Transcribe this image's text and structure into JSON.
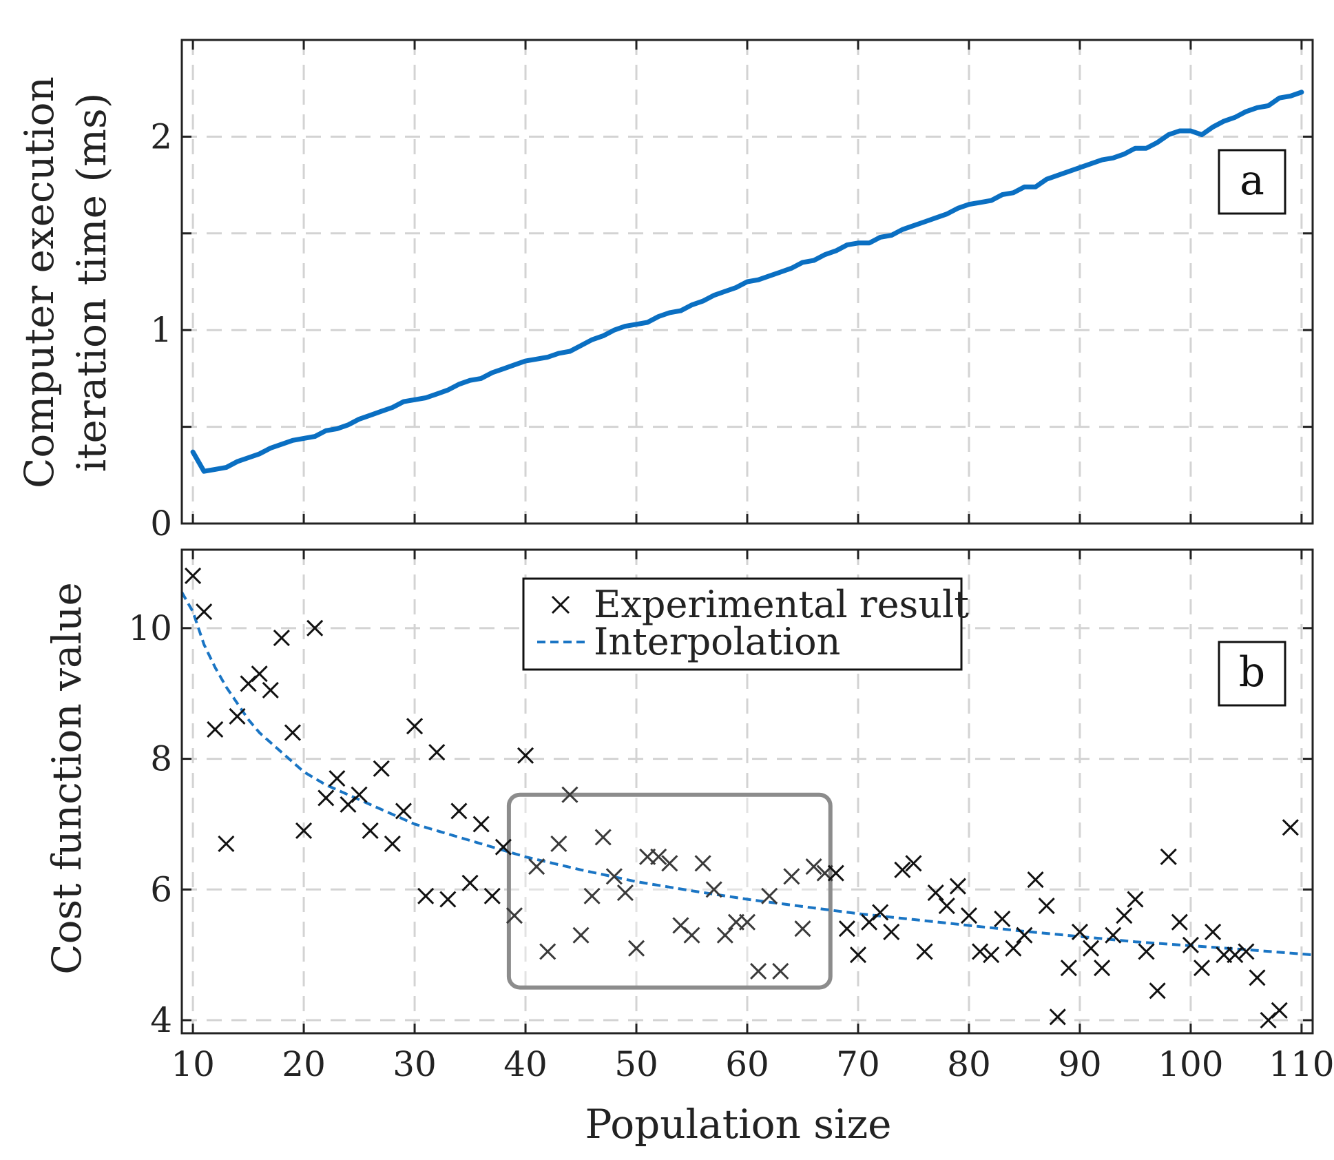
{
  "colors": {
    "line": "#0a6fc2",
    "interp": "#1a75c4",
    "marker": "#111111",
    "grid": "#d3d3d3",
    "highlight": "#8c8c8c"
  },
  "chart_data": [
    {
      "type": "line",
      "panel_label": "a",
      "xlabel": "",
      "ylabel_lines": [
        "Computer execution",
        "iteration time (ms)"
      ],
      "xlim": [
        9,
        111
      ],
      "ylim": [
        0,
        2.5
      ],
      "yticks": [
        0,
        1,
        2
      ],
      "grid": true,
      "series": [
        {
          "name": "",
          "x": [
            10,
            11,
            12,
            13,
            14,
            15,
            16,
            17,
            18,
            19,
            20,
            21,
            22,
            23,
            24,
            25,
            26,
            27,
            28,
            29,
            30,
            31,
            32,
            33,
            34,
            35,
            36,
            37,
            38,
            39,
            40,
            41,
            42,
            43,
            44,
            45,
            46,
            47,
            48,
            49,
            50,
            51,
            52,
            53,
            54,
            55,
            56,
            57,
            58,
            59,
            60,
            61,
            62,
            63,
            64,
            65,
            66,
            67,
            68,
            69,
            70,
            71,
            72,
            73,
            74,
            75,
            76,
            77,
            78,
            79,
            80,
            81,
            82,
            83,
            84,
            85,
            86,
            87,
            88,
            89,
            90,
            91,
            92,
            93,
            94,
            95,
            96,
            97,
            98,
            99,
            100,
            101,
            102,
            103,
            104,
            105,
            106,
            107,
            108,
            109,
            110
          ],
          "y": [
            0.37,
            0.27,
            0.28,
            0.29,
            0.32,
            0.34,
            0.36,
            0.39,
            0.41,
            0.43,
            0.44,
            0.45,
            0.48,
            0.49,
            0.51,
            0.54,
            0.56,
            0.58,
            0.6,
            0.63,
            0.64,
            0.65,
            0.67,
            0.69,
            0.72,
            0.74,
            0.75,
            0.78,
            0.8,
            0.82,
            0.84,
            0.85,
            0.86,
            0.88,
            0.89,
            0.92,
            0.95,
            0.97,
            1.0,
            1.02,
            1.03,
            1.04,
            1.07,
            1.09,
            1.1,
            1.13,
            1.15,
            1.18,
            1.2,
            1.22,
            1.25,
            1.26,
            1.28,
            1.3,
            1.32,
            1.35,
            1.36,
            1.39,
            1.41,
            1.44,
            1.45,
            1.45,
            1.48,
            1.49,
            1.52,
            1.54,
            1.56,
            1.58,
            1.6,
            1.63,
            1.65,
            1.66,
            1.67,
            1.7,
            1.71,
            1.74,
            1.74,
            1.78,
            1.8,
            1.82,
            1.84,
            1.86,
            1.88,
            1.89,
            1.91,
            1.94,
            1.94,
            1.97,
            2.01,
            2.03,
            2.03,
            2.01,
            2.05,
            2.08,
            2.1,
            2.13,
            2.15,
            2.16,
            2.2,
            2.21,
            2.23
          ]
        }
      ]
    },
    {
      "type": "scatter",
      "panel_label": "b",
      "xlabel": "Population size",
      "ylabel": "Cost function value",
      "xlim": [
        9,
        111
      ],
      "ylim": [
        3.8,
        11.2
      ],
      "xticks": [
        10,
        20,
        30,
        40,
        50,
        60,
        70,
        80,
        90,
        100,
        110
      ],
      "yticks": [
        4,
        6,
        8,
        10
      ],
      "grid": true,
      "legend": {
        "placement": "top-center",
        "entries": [
          "Experimental result",
          "Interpolation"
        ]
      },
      "highlight_box": {
        "x": [
          38.5,
          67.5
        ],
        "y": [
          4.5,
          7.45
        ]
      },
      "series": [
        {
          "name": "Experimental result",
          "marker": "x",
          "x": [
            10,
            11,
            12,
            13,
            14,
            15,
            16,
            17,
            18,
            19,
            20,
            21,
            22,
            23,
            24,
            25,
            26,
            27,
            28,
            29,
            30,
            31,
            32,
            33,
            34,
            35,
            36,
            37,
            38,
            39,
            40,
            41,
            42,
            43,
            44,
            45,
            46,
            47,
            48,
            49,
            50,
            51,
            52,
            53,
            54,
            55,
            56,
            57,
            58,
            59,
            60,
            61,
            62,
            63,
            64,
            65,
            66,
            67,
            68,
            69,
            70,
            71,
            72,
            73,
            74,
            75,
            76,
            77,
            78,
            79,
            80,
            81,
            82,
            83,
            84,
            85,
            86,
            87,
            88,
            89,
            90,
            91,
            92,
            93,
            94,
            95,
            96,
            97,
            98,
            99,
            100,
            101,
            102,
            103,
            104,
            105,
            106,
            107,
            108,
            109
          ],
          "y": [
            10.8,
            10.25,
            8.45,
            6.7,
            8.65,
            9.15,
            9.3,
            9.05,
            9.85,
            8.4,
            6.9,
            10.0,
            7.4,
            7.7,
            7.3,
            7.45,
            6.9,
            7.85,
            6.7,
            7.2,
            8.5,
            5.9,
            8.1,
            5.85,
            7.2,
            6.1,
            7.0,
            5.9,
            6.65,
            5.6,
            8.05,
            6.35,
            5.05,
            6.7,
            7.45,
            5.3,
            5.9,
            6.8,
            6.2,
            5.95,
            5.1,
            6.5,
            6.5,
            6.4,
            5.45,
            5.3,
            6.4,
            6.0,
            5.3,
            5.5,
            5.5,
            4.75,
            5.9,
            4.75,
            6.2,
            5.4,
            6.35,
            6.25,
            6.25,
            5.4,
            5.0,
            5.5,
            5.65,
            5.35,
            6.3,
            6.4,
            5.05,
            5.95,
            5.75,
            6.05,
            5.6,
            5.05,
            5.0,
            5.55,
            5.1,
            5.3,
            6.15,
            5.75,
            4.05,
            4.8,
            5.35,
            5.1,
            4.8,
            5.3,
            5.6,
            5.85,
            5.05,
            4.45,
            6.5,
            5.5,
            5.15,
            4.8,
            5.35,
            5.0,
            5.0,
            5.05,
            4.65,
            4.0,
            4.15,
            6.95
          ]
        },
        {
          "name": "Interpolation",
          "style": "dashed",
          "x": [
            9,
            10,
            11,
            12,
            13,
            14,
            15,
            16,
            17,
            18,
            19,
            20,
            22,
            24,
            26,
            28,
            30,
            33,
            36,
            40,
            45,
            50,
            55,
            60,
            65,
            70,
            75,
            80,
            85,
            90,
            95,
            100,
            105,
            111
          ],
          "y": [
            10.55,
            10.25,
            9.75,
            9.4,
            9.1,
            8.85,
            8.6,
            8.4,
            8.25,
            8.1,
            7.95,
            7.8,
            7.6,
            7.45,
            7.3,
            7.15,
            7.0,
            6.85,
            6.7,
            6.5,
            6.3,
            6.12,
            5.98,
            5.85,
            5.74,
            5.63,
            5.54,
            5.45,
            5.36,
            5.28,
            5.2,
            5.14,
            5.08,
            5.0
          ]
        }
      ]
    }
  ]
}
